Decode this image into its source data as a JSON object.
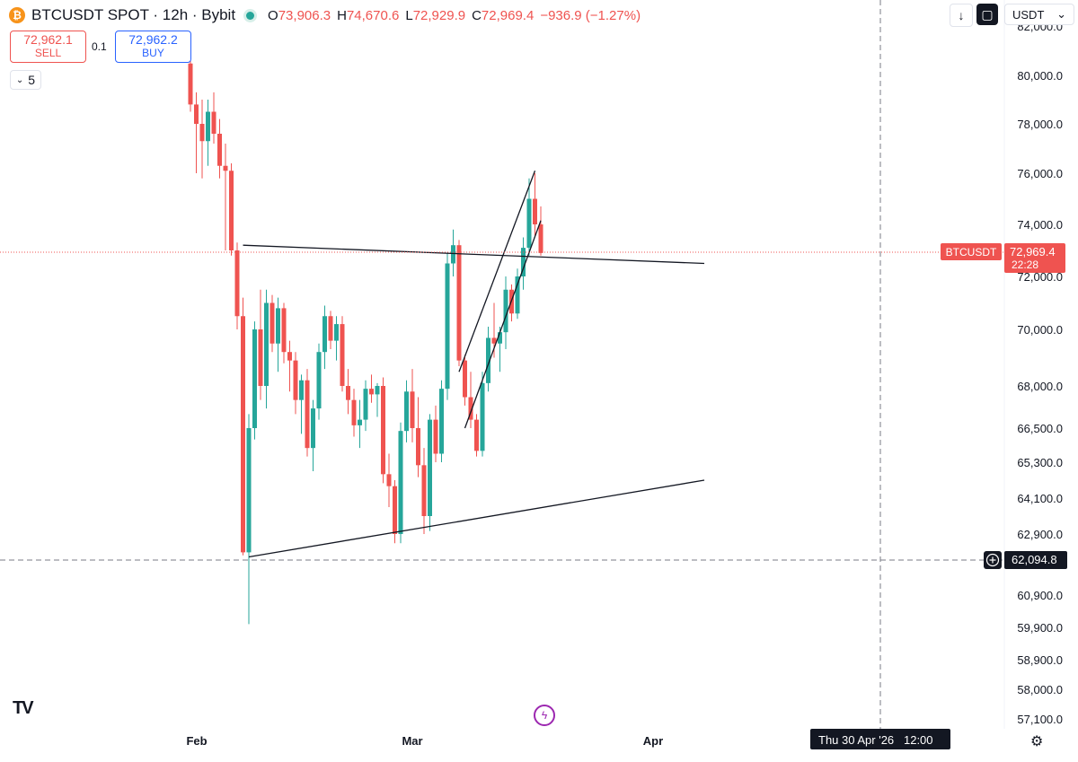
{
  "header": {
    "symbol_title": "BTCUSDT SPOT · 12h · Bybit",
    "coin_glyph": "₿",
    "ohlc": [
      {
        "label": "O",
        "value": "73,906.3"
      },
      {
        "label": "H",
        "value": "74,670.6"
      },
      {
        "label": "L",
        "value": "72,929.9"
      },
      {
        "label": "C",
        "value": "72,969.4"
      }
    ],
    "change": "−936.9 (−1.27%)"
  },
  "trade": {
    "sell_price": "72,962.1",
    "sell_label": "SELL",
    "spread": "0.1",
    "buy_price": "72,962.2",
    "buy_label": "BUY"
  },
  "interval": {
    "value": "5",
    "chevron": "⌄"
  },
  "toolbar": {
    "down_glyph": "↓",
    "square_glyph": "▢",
    "currency": "USDT",
    "currency_chevron": "⌄"
  },
  "logo_text": "TV",
  "bolt_glyph": "ϟ",
  "gear_glyph": "⚙",
  "price_axis": {
    "top_partial": "82,000.0",
    "labels": [
      "80,000.0",
      "78,000.0",
      "76,000.0",
      "74,000.0",
      "72,000.0",
      "70,000.0",
      "68,000.0",
      "66,500.0",
      "65,300.0",
      "64,100.0",
      "62,900.0",
      "60,900.0",
      "59,900.0",
      "58,900.0",
      "58,000.0",
      "57,100.0"
    ],
    "current_symbol": "BTCUSDT",
    "current_price": "72,969.4",
    "countdown": "22:28",
    "crosshair_price": "62,094.8"
  },
  "time_axis": {
    "labels": [
      "Feb",
      "Mar",
      "Apr"
    ],
    "crosshair_time": "Thu 30 Apr '26   12:00"
  },
  "colors": {
    "up": "#26a69a",
    "down": "#ef5350",
    "accent_blue": "#2962ff",
    "crosshair_label_bg": "#131722"
  },
  "chart_data": {
    "type": "candlestick",
    "symbol": "BTCUSDT",
    "interval": "12h",
    "candles": [
      {
        "o": 80500,
        "h": 83000,
        "l": 78500,
        "c": 78800
      },
      {
        "o": 78800,
        "h": 79300,
        "l": 76000,
        "c": 78000
      },
      {
        "o": 78000,
        "h": 79000,
        "l": 75800,
        "c": 77300
      },
      {
        "o": 77300,
        "h": 79000,
        "l": 76300,
        "c": 78500
      },
      {
        "o": 78500,
        "h": 79300,
        "l": 77200,
        "c": 77600
      },
      {
        "o": 77600,
        "h": 78200,
        "l": 75800,
        "c": 76300
      },
      {
        "o": 76300,
        "h": 77200,
        "l": 73000,
        "c": 76100
      },
      {
        "o": 76100,
        "h": 76400,
        "l": 72800,
        "c": 73000
      },
      {
        "o": 73000,
        "h": 73300,
        "l": 70000,
        "c": 70500
      },
      {
        "o": 70500,
        "h": 71200,
        "l": 62200,
        "c": 62300
      },
      {
        "o": 62300,
        "h": 67000,
        "l": 60000,
        "c": 66500
      },
      {
        "o": 66500,
        "h": 70300,
        "l": 66100,
        "c": 70000
      },
      {
        "o": 70000,
        "h": 71500,
        "l": 67500,
        "c": 68000
      },
      {
        "o": 68000,
        "h": 71500,
        "l": 67200,
        "c": 71000
      },
      {
        "o": 71000,
        "h": 71300,
        "l": 69200,
        "c": 69500
      },
      {
        "o": 69500,
        "h": 71200,
        "l": 68500,
        "c": 70800
      },
      {
        "o": 70800,
        "h": 71000,
        "l": 68800,
        "c": 69200
      },
      {
        "o": 69200,
        "h": 69600,
        "l": 67800,
        "c": 68900
      },
      {
        "o": 68900,
        "h": 69200,
        "l": 67000,
        "c": 67500
      },
      {
        "o": 67500,
        "h": 68400,
        "l": 66300,
        "c": 68200
      },
      {
        "o": 68200,
        "h": 68600,
        "l": 65500,
        "c": 65800
      },
      {
        "o": 65800,
        "h": 67500,
        "l": 65000,
        "c": 67200
      },
      {
        "o": 67200,
        "h": 69500,
        "l": 66800,
        "c": 69200
      },
      {
        "o": 69200,
        "h": 70900,
        "l": 68600,
        "c": 70500
      },
      {
        "o": 70500,
        "h": 70700,
        "l": 69300,
        "c": 69600
      },
      {
        "o": 69600,
        "h": 70500,
        "l": 68900,
        "c": 70200
      },
      {
        "o": 70200,
        "h": 70500,
        "l": 67800,
        "c": 68000
      },
      {
        "o": 68000,
        "h": 68600,
        "l": 67000,
        "c": 67500
      },
      {
        "o": 67500,
        "h": 67900,
        "l": 66200,
        "c": 66600
      },
      {
        "o": 66600,
        "h": 67500,
        "l": 65800,
        "c": 66800
      },
      {
        "o": 66800,
        "h": 68200,
        "l": 66400,
        "c": 67900
      },
      {
        "o": 67900,
        "h": 68400,
        "l": 67400,
        "c": 67700
      },
      {
        "o": 67700,
        "h": 68100,
        "l": 66900,
        "c": 68000
      },
      {
        "o": 68000,
        "h": 68300,
        "l": 64600,
        "c": 64900
      },
      {
        "o": 64900,
        "h": 65600,
        "l": 63800,
        "c": 64500
      },
      {
        "o": 64500,
        "h": 64700,
        "l": 62600,
        "c": 62900
      },
      {
        "o": 62900,
        "h": 66700,
        "l": 62600,
        "c": 66400
      },
      {
        "o": 66400,
        "h": 68200,
        "l": 66000,
        "c": 67800
      },
      {
        "o": 67800,
        "h": 68600,
        "l": 66000,
        "c": 66500
      },
      {
        "o": 66500,
        "h": 67600,
        "l": 64800,
        "c": 65200
      },
      {
        "o": 65200,
        "h": 65800,
        "l": 62900,
        "c": 63500
      },
      {
        "o": 63500,
        "h": 67000,
        "l": 63000,
        "c": 66800
      },
      {
        "o": 66800,
        "h": 67300,
        "l": 65300,
        "c": 65600
      },
      {
        "o": 65600,
        "h": 68200,
        "l": 65300,
        "c": 67900
      },
      {
        "o": 67900,
        "h": 72900,
        "l": 67500,
        "c": 72500
      },
      {
        "o": 72500,
        "h": 73800,
        "l": 72000,
        "c": 73200
      },
      {
        "o": 73200,
        "h": 73400,
        "l": 68700,
        "c": 68900
      },
      {
        "o": 68900,
        "h": 69100,
        "l": 67300,
        "c": 67600
      },
      {
        "o": 67600,
        "h": 68500,
        "l": 66500,
        "c": 66800
      },
      {
        "o": 66800,
        "h": 67000,
        "l": 65500,
        "c": 65700
      },
      {
        "o": 65700,
        "h": 68500,
        "l": 65500,
        "c": 68100
      },
      {
        "o": 68100,
        "h": 70100,
        "l": 67800,
        "c": 69700
      },
      {
        "o": 69700,
        "h": 71000,
        "l": 69000,
        "c": 69500
      },
      {
        "o": 69500,
        "h": 70100,
        "l": 68500,
        "c": 69900
      },
      {
        "o": 69900,
        "h": 72000,
        "l": 69300,
        "c": 71500
      },
      {
        "o": 71500,
        "h": 71700,
        "l": 70300,
        "c": 70600
      },
      {
        "o": 70600,
        "h": 72300,
        "l": 70400,
        "c": 72000
      },
      {
        "o": 72000,
        "h": 73500,
        "l": 71500,
        "c": 73100
      },
      {
        "o": 73100,
        "h": 75800,
        "l": 72800,
        "c": 75000
      },
      {
        "o": 75000,
        "h": 76000,
        "l": 73500,
        "c": 74000
      },
      {
        "o": 74000,
        "h": 74700,
        "l": 72800,
        "c": 72900
      }
    ],
    "trendlines": [
      {
        "from": {
          "candle": 9,
          "price": 73200
        },
        "to": {
          "candle": 88,
          "price": 72500
        }
      },
      {
        "from": {
          "candle": 10,
          "price": 62150
        },
        "to": {
          "candle": 88,
          "price": 64700
        }
      },
      {
        "from": {
          "candle": 46,
          "price": 68500
        },
        "to": {
          "candle": 59,
          "price": 76100
        }
      },
      {
        "from": {
          "candle": 47,
          "price": 66500
        },
        "to": {
          "candle": 60,
          "price": 74150
        }
      }
    ],
    "last_price": 72969.4,
    "crosshair_price": 62094.8,
    "grid": false
  }
}
